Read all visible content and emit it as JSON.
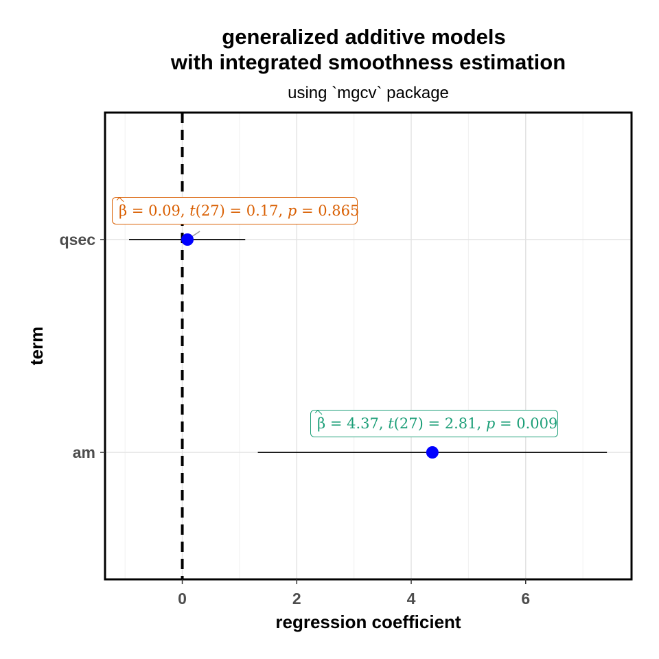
{
  "chart_data": {
    "type": "scatter",
    "title_line1": "generalized additive models",
    "title_line2": "with integrated smoothness estimation",
    "subtitle": "using `mgcv` package",
    "xlabel": "regression coefficient",
    "ylabel": "term",
    "xlim": [
      -1.35,
      7.85
    ],
    "x_ticks": [
      0,
      2,
      4,
      6
    ],
    "reference_line_x": 0,
    "grid": true,
    "categories": [
      "qsec",
      "am"
    ],
    "points": [
      {
        "term": "qsec",
        "estimate": 0.09,
        "conf_low": -0.93,
        "conf_high": 1.1,
        "label": {
          "beta": "0.09",
          "t_df": "27",
          "t_value": "0.17",
          "p_value": "0.865",
          "color": "#d95f02"
        }
      },
      {
        "term": "am",
        "estimate": 4.37,
        "conf_low": 1.32,
        "conf_high": 7.42,
        "label": {
          "beta": "4.37",
          "t_df": "27",
          "t_value": "2.81",
          "p_value": "0.009",
          "color": "#1b9e77"
        }
      }
    ],
    "point_color": "#0000ff",
    "errorbar_color": "#000000"
  }
}
